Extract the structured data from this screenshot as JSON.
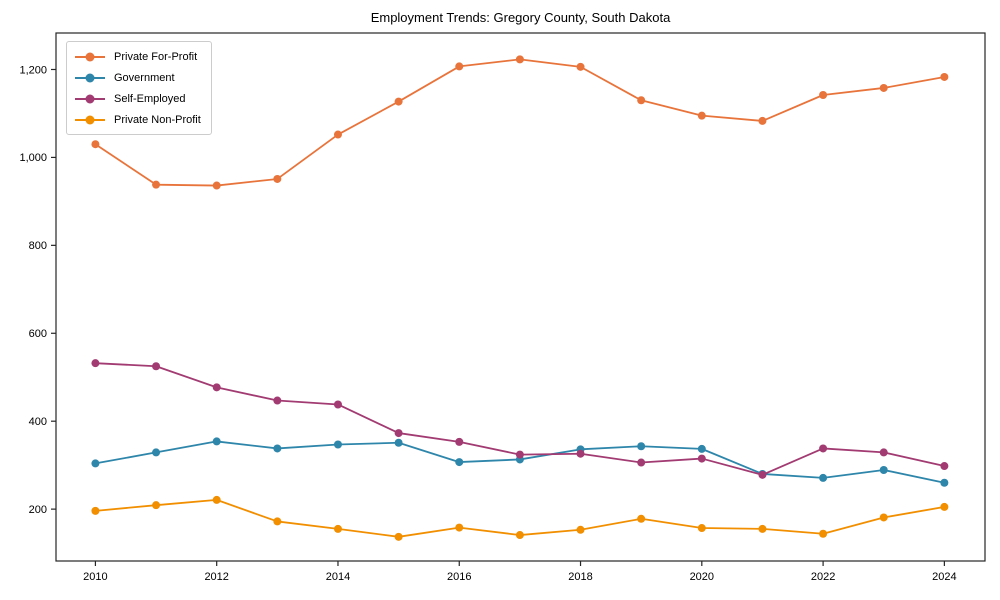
{
  "chart_data": {
    "type": "line",
    "title": "Employment Trends: Gregory County, South Dakota",
    "x": [
      2010,
      2011,
      2012,
      2013,
      2014,
      2015,
      2016,
      2017,
      2018,
      2019,
      2020,
      2021,
      2022,
      2023,
      2024
    ],
    "series": [
      {
        "name": "Private For-Profit",
        "color": "#e8743b",
        "values": [
          1030,
          938,
          936,
          951,
          1052,
          1127,
          1207,
          1223,
          1206,
          1130,
          1095,
          1083,
          1142,
          1158,
          1183
        ]
      },
      {
        "name": "Government",
        "color": "#2e86ab",
        "values": [
          304,
          329,
          354,
          338,
          347,
          351,
          307,
          313,
          336,
          343,
          337,
          280,
          271,
          289,
          260
        ]
      },
      {
        "name": "Self-Employed",
        "color": "#a23b72",
        "values": [
          532,
          525,
          477,
          447,
          438,
          373,
          353,
          324,
          326,
          306,
          315,
          278,
          338,
          329,
          298
        ]
      },
      {
        "name": "Private Non-Profit",
        "color": "#f18f01",
        "values": [
          196,
          209,
          221,
          172,
          155,
          137,
          158,
          141,
          153,
          178,
          157,
          155,
          144,
          181,
          205
        ]
      }
    ],
    "xlabel": "",
    "ylabel": "",
    "xticks": [
      2010,
      2012,
      2014,
      2016,
      2018,
      2020,
      2022,
      2024
    ],
    "xtick_labels": [
      "2010",
      "2012",
      "2014",
      "2016",
      "2018",
      "2020",
      "2022",
      "2024"
    ],
    "yticks": [
      200,
      400,
      600,
      800,
      1000,
      1200
    ],
    "ytick_labels": [
      "200",
      "400",
      "600",
      "800",
      "1,000",
      "1,200"
    ],
    "xlim": [
      2009.35,
      2024.67
    ],
    "ylim": [
      82,
      1283
    ],
    "grid": false,
    "legend_position": "upper-left",
    "axis_color": "#262626",
    "tick_text_color": "#000000"
  }
}
